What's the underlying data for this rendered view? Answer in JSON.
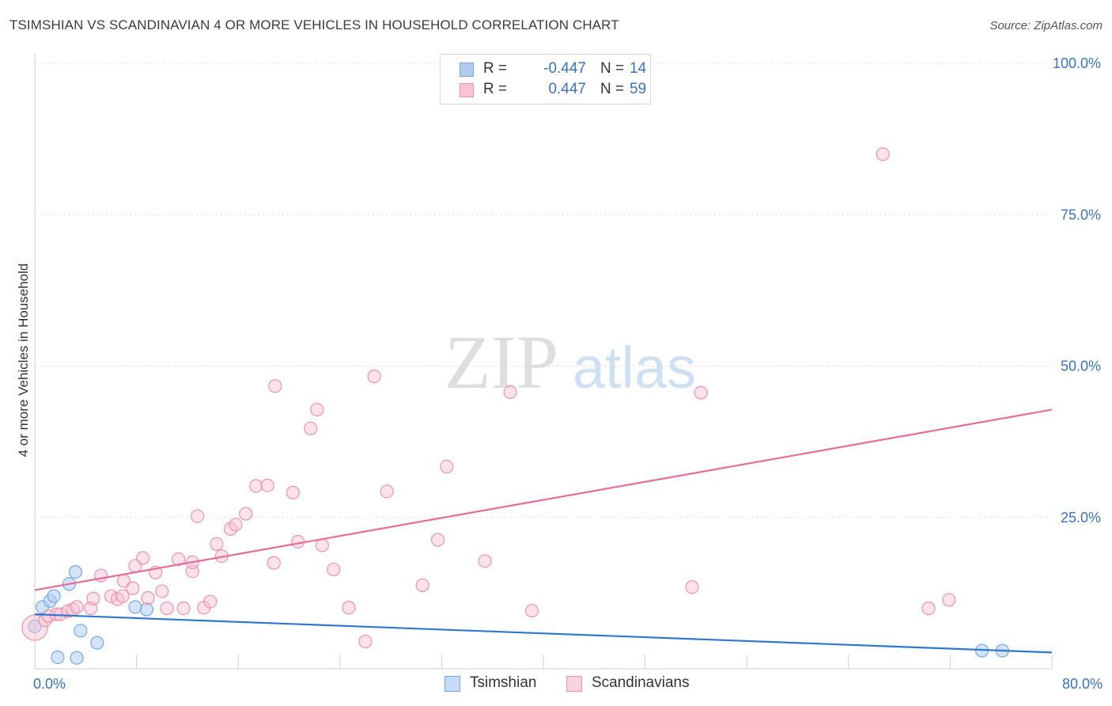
{
  "header": {
    "title": "TSIMSHIAN VS SCANDINAVIAN 4 OR MORE VEHICLES IN HOUSEHOLD CORRELATION CHART",
    "source": "Source: ZipAtlas.com"
  },
  "watermark": {
    "zip": "ZIP",
    "atlas": "atlas"
  },
  "legend": {
    "r_label": "R =",
    "n_label": "N =",
    "rows": [
      {
        "r": "-0.447",
        "n": "14",
        "color": "#aeccf2",
        "border": "#7aa6e0"
      },
      {
        "r": "0.447",
        "n": "59",
        "color": "#f8c2d2",
        "border": "#ec92ad"
      }
    ]
  },
  "bottom_legend": [
    {
      "label": "Tsimshian",
      "color": "#c6dbf6",
      "border": "#7aa6e0"
    },
    {
      "label": "Scandinavians",
      "color": "#fbd3e0",
      "border": "#ec92ad"
    }
  ],
  "chart_data": {
    "type": "scatter",
    "ylabel": "4 or more Vehicles in Household",
    "xlim": [
      0,
      80
    ],
    "ylim": [
      0,
      105
    ],
    "x_tick_labels": [
      {
        "value": 0,
        "label": "0.0%"
      },
      {
        "value": 80,
        "label": "80.0%"
      }
    ],
    "y_tick_labels": [
      {
        "value": 25,
        "label": "25.0%"
      },
      {
        "value": 50,
        "label": "50.0%"
      },
      {
        "value": 75,
        "label": "75.0%"
      },
      {
        "value": 100,
        "label": "100.0%"
      }
    ],
    "x_minor_ticks": [
      0,
      8,
      16,
      24,
      32,
      40,
      48,
      56,
      64,
      72,
      80
    ],
    "grid": true,
    "colors": {
      "tsimshian": "#2f78d0",
      "scandinavians": "#e56d96"
    },
    "series": [
      {
        "name": "Tsimshian",
        "points": [
          [
            0.0,
            7.0
          ],
          [
            0.6,
            10.2
          ],
          [
            1.2,
            11.2
          ],
          [
            1.5,
            12.0
          ],
          [
            1.8,
            1.9
          ],
          [
            2.7,
            14.0
          ],
          [
            3.2,
            16.0
          ],
          [
            3.3,
            1.8
          ],
          [
            3.6,
            6.3
          ],
          [
            4.9,
            4.3
          ],
          [
            7.9,
            10.2
          ],
          [
            8.8,
            9.8
          ],
          [
            74.5,
            3.0
          ],
          [
            76.1,
            3.0
          ]
        ],
        "trend": [
          [
            0,
            9.0
          ],
          [
            80,
            2.7
          ]
        ]
      },
      {
        "name": "Scandinavians",
        "points": [
          [
            0.0,
            6.8
          ],
          [
            0.8,
            8.0
          ],
          [
            1.1,
            8.7
          ],
          [
            1.7,
            9.0
          ],
          [
            2.0,
            9.0
          ],
          [
            2.6,
            9.5
          ],
          [
            3.0,
            9.8
          ],
          [
            3.3,
            10.2
          ],
          [
            4.4,
            10.0
          ],
          [
            4.6,
            11.6
          ],
          [
            5.2,
            15.4
          ],
          [
            6.0,
            12.0
          ],
          [
            6.5,
            11.5
          ],
          [
            6.9,
            12.0
          ],
          [
            7.0,
            14.5
          ],
          [
            7.7,
            13.3
          ],
          [
            7.9,
            17.0
          ],
          [
            8.5,
            18.3
          ],
          [
            8.9,
            11.7
          ],
          [
            9.5,
            15.9
          ],
          [
            10.0,
            12.8
          ],
          [
            10.4,
            10.0
          ],
          [
            11.3,
            18.1
          ],
          [
            11.7,
            10.0
          ],
          [
            12.4,
            16.1
          ],
          [
            12.4,
            17.6
          ],
          [
            12.8,
            25.2
          ],
          [
            13.3,
            10.1
          ],
          [
            13.8,
            11.1
          ],
          [
            14.3,
            20.6
          ],
          [
            14.7,
            18.6
          ],
          [
            15.4,
            23.1
          ],
          [
            15.8,
            23.8
          ],
          [
            16.6,
            25.6
          ],
          [
            17.4,
            30.2
          ],
          [
            18.3,
            30.3
          ],
          [
            18.8,
            17.5
          ],
          [
            18.9,
            46.7
          ],
          [
            20.3,
            29.1
          ],
          [
            20.7,
            21.0
          ],
          [
            21.7,
            39.7
          ],
          [
            22.2,
            42.8
          ],
          [
            22.6,
            20.4
          ],
          [
            23.5,
            16.4
          ],
          [
            24.7,
            10.1
          ],
          [
            26.0,
            4.5
          ],
          [
            26.7,
            48.3
          ],
          [
            27.7,
            29.3
          ],
          [
            30.5,
            13.8
          ],
          [
            31.7,
            21.3
          ],
          [
            32.4,
            33.4
          ],
          [
            35.4,
            17.8
          ],
          [
            37.4,
            45.7
          ],
          [
            39.1,
            9.6
          ],
          [
            51.7,
            13.5
          ],
          [
            52.4,
            45.6
          ],
          [
            66.7,
            85.0
          ],
          [
            70.3,
            10.0
          ],
          [
            71.9,
            11.4
          ]
        ],
        "trend": [
          [
            0,
            13.0
          ],
          [
            80,
            42.8
          ]
        ]
      }
    ]
  }
}
